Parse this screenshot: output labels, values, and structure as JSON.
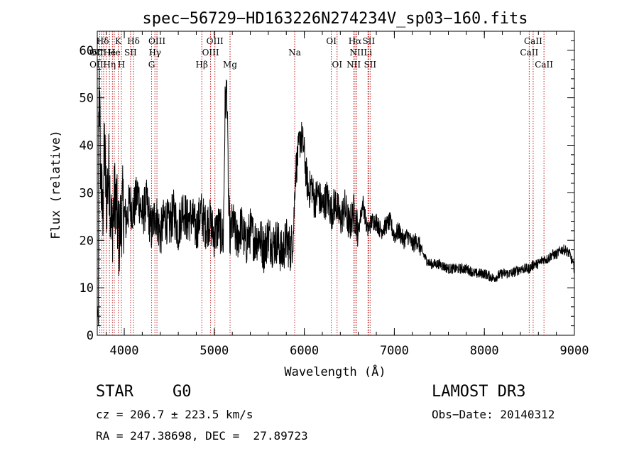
{
  "chart_data": {
    "type": "line",
    "title": "spec−56729−HD163226N274234V_sp03−160.fits",
    "xlabel": "Wavelength (Å)",
    "ylabel": "Flux (relative)",
    "xlim": [
      3700,
      9000
    ],
    "ylim": [
      0,
      64
    ],
    "xticks": [
      4000,
      5000,
      6000,
      7000,
      8000,
      9000
    ],
    "yticks": [
      0,
      10,
      20,
      30,
      40,
      50,
      60
    ],
    "xtick_labels": [
      "4000",
      "5000",
      "6000",
      "7000",
      "8000",
      "9000"
    ],
    "ytick_labels": [
      "0",
      "10",
      "20",
      "30",
      "40",
      "50",
      "60"
    ],
    "grid": false,
    "series": [
      {
        "values_x": [
          3700,
          3720,
          3740,
          3760,
          3780,
          3800,
          3830,
          3860,
          3900,
          3940,
          3980,
          4020,
          4060,
          4100,
          4150,
          4200,
          4250,
          4300,
          4350,
          4400,
          4450,
          4500,
          4550,
          4600,
          4650,
          4700,
          4750,
          4800,
          4850,
          4900,
          4950,
          5000,
          5050,
          5100,
          5120,
          5140,
          5160,
          5180,
          5200,
          5250,
          5300,
          5350,
          5400,
          5450,
          5500,
          5550,
          5600,
          5650,
          5700,
          5750,
          5800,
          5850,
          5880,
          5900,
          5930,
          5960,
          5990,
          6020,
          6050,
          6080,
          6110,
          6150,
          6200,
          6250,
          6300,
          6350,
          6400,
          6450,
          6500,
          6550,
          6600,
          6650,
          6700,
          6750,
          6800,
          6850,
          6900,
          6950,
          7000,
          7050,
          7100,
          7150,
          7200,
          7250,
          7300,
          7350,
          7400,
          7450,
          7500,
          7600,
          7700,
          7800,
          7900,
          8000,
          8100,
          8200,
          8300,
          8400,
          8450,
          8500,
          8550,
          8600,
          8650,
          8700,
          8750,
          8800,
          8850,
          8900,
          8950,
          9000
        ],
        "values_y": [
          2,
          55,
          32,
          25,
          40,
          28,
          35,
          22,
          30,
          20,
          27,
          24,
          28,
          26,
          30,
          25,
          28,
          22,
          26,
          21,
          25,
          23,
          26,
          22,
          27,
          24,
          25,
          22,
          26,
          23,
          24,
          21,
          23,
          20,
          48,
          52,
          26,
          20,
          24,
          20,
          23,
          19,
          22,
          20,
          21,
          18,
          21,
          19,
          20,
          17,
          20,
          18,
          22,
          34,
          38,
          42,
          40,
          34,
          30,
          32,
          28,
          30,
          27,
          29,
          26,
          28,
          24,
          27,
          23,
          26,
          22,
          28,
          22,
          24,
          24,
          22,
          23,
          24,
          21,
          22,
          20,
          21,
          19,
          20,
          18,
          16,
          15,
          15,
          15,
          14,
          14,
          14,
          13,
          13,
          12,
          13,
          13,
          14,
          14,
          14,
          15,
          15,
          16,
          16,
          17,
          17,
          18,
          18,
          17,
          14
        ]
      }
    ],
    "lines": [
      {
        "x": 3727,
        "color": "#b40000"
      },
      {
        "x": 3750,
        "color": "#b40000"
      },
      {
        "x": 3771,
        "color": "#b40000"
      },
      {
        "x": 3798,
        "color": "#b40000"
      },
      {
        "x": 3835,
        "color": "#b40000"
      },
      {
        "x": 3868,
        "color": "#b40000"
      },
      {
        "x": 3889,
        "color": "#b40000"
      },
      {
        "x": 3933,
        "color": "#b40000"
      },
      {
        "x": 3968,
        "color": "#b40000"
      },
      {
        "x": 4070,
        "color": "#b40000"
      },
      {
        "x": 4102,
        "color": "#b40000"
      },
      {
        "x": 4304,
        "color": "#b40000"
      },
      {
        "x": 4340,
        "color": "#b40000"
      },
      {
        "x": 4363,
        "color": "#b40000"
      },
      {
        "x": 4861,
        "color": "#b40000"
      },
      {
        "x": 4959,
        "color": "#b40000"
      },
      {
        "x": 5007,
        "color": "#b40000"
      },
      {
        "x": 5175,
        "color": "#b40000"
      },
      {
        "x": 5893,
        "color": "#b40000"
      },
      {
        "x": 6300,
        "color": "#b40000"
      },
      {
        "x": 6364,
        "color": "#b40000"
      },
      {
        "x": 6548,
        "color": "#b40000"
      },
      {
        "x": 6563,
        "color": "#b40000"
      },
      {
        "x": 6583,
        "color": "#b40000"
      },
      {
        "x": 6707,
        "color": "#b40000"
      },
      {
        "x": 6716,
        "color": "#b40000"
      },
      {
        "x": 6731,
        "color": "#b40000"
      },
      {
        "x": 8498,
        "color": "#b40000"
      },
      {
        "x": 8542,
        "color": "#b40000"
      },
      {
        "x": 8662,
        "color": "#b40000"
      }
    ],
    "annotations": [
      {
        "text": "Hδ",
        "x": 3760,
        "row": 0
      },
      {
        "text": "K",
        "x": 3933,
        "row": 0
      },
      {
        "text": "Hδ",
        "x": 4102,
        "row": 0
      },
      {
        "text": "OIII",
        "x": 4363,
        "row": 0
      },
      {
        "text": "OIII",
        "x": 5007,
        "row": 0
      },
      {
        "text": "OI",
        "x": 6300,
        "row": 0
      },
      {
        "text": "Hα",
        "x": 6563,
        "row": 0
      },
      {
        "text": "SII",
        "x": 6716,
        "row": 0
      },
      {
        "text": "CaII",
        "x": 8542,
        "row": 0
      },
      {
        "text": "60",
        "x": 3700,
        "row": 1
      },
      {
        "text": "OIIHe",
        "x": 3760,
        "row": 1
      },
      {
        "text": "He",
        "x": 3889,
        "row": 1
      },
      {
        "text": "SII",
        "x": 4070,
        "row": 1
      },
      {
        "text": "Hγ",
        "x": 4340,
        "row": 1
      },
      {
        "text": "OIII",
        "x": 4959,
        "row": 1
      },
      {
        "text": "Na",
        "x": 5893,
        "row": 1
      },
      {
        "text": "NII",
        "x": 6583,
        "row": 1
      },
      {
        "text": "Li",
        "x": 6707,
        "row": 1
      },
      {
        "text": "CaII",
        "x": 8498,
        "row": 1
      },
      {
        "text": "OIIHη",
        "x": 3760,
        "row": 2
      },
      {
        "text": "H",
        "x": 3968,
        "row": 2
      },
      {
        "text": "G",
        "x": 4304,
        "row": 2
      },
      {
        "text": "Hβ",
        "x": 4861,
        "row": 2
      },
      {
        "text": "Mg",
        "x": 5175,
        "row": 2
      },
      {
        "text": "OI",
        "x": 6364,
        "row": 2
      },
      {
        "text": "NII",
        "x": 6548,
        "row": 2
      },
      {
        "text": "SII",
        "x": 6731,
        "row": 2
      },
      {
        "text": "CaII",
        "x": 8662,
        "row": 2
      }
    ]
  },
  "info": {
    "class_label": "STAR",
    "subclass": "G0",
    "survey": "LAMOST DR3",
    "velocity": "cz = 206.7 ± 223.5 km/s",
    "obs_date": "Obs−Date: 20140312",
    "coords": "RA = 247.38698, DEC =  27.89723"
  }
}
